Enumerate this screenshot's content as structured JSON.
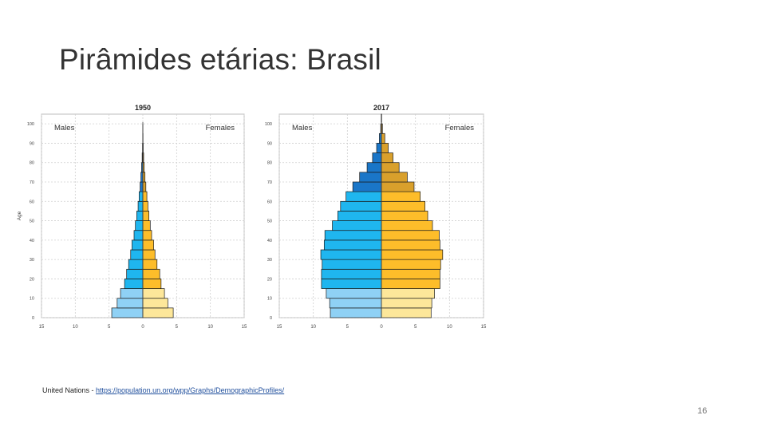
{
  "slide": {
    "title": "Pirâmides etárias: Brasil",
    "source_prefix": "United Nations - ",
    "source_link": "https://population.un.org/wpp/Graphs/DemographicProfiles/",
    "page_number": "16"
  },
  "colors": {
    "male": "#1fb6ef",
    "male_old": "#1a76c8",
    "male_young": "#8fd1f5",
    "female": "#fdbd2a",
    "female_old": "#d9a02c",
    "female_young": "#fde79a",
    "grid": "#cfcfcf",
    "axis": "#444444"
  },
  "chart_data": [
    {
      "type": "bar",
      "orientation": "horizontal-population-pyramid",
      "title": "1950",
      "ylabel": "Age",
      "xlim": [
        -15,
        15
      ],
      "xticks": [
        "15",
        "10",
        "5",
        "0",
        "5",
        "10",
        "15"
      ],
      "yticks": [
        "0",
        "10",
        "20",
        "30",
        "40",
        "50",
        "60",
        "70",
        "80",
        "90",
        "100"
      ],
      "age_groups": [
        "0-4",
        "5-9",
        "10-14",
        "15-19",
        "20-24",
        "25-29",
        "30-34",
        "35-39",
        "40-44",
        "45-49",
        "50-54",
        "55-59",
        "60-64",
        "65-69",
        "70-74",
        "75-79",
        "80-84",
        "85-89",
        "90-94",
        "95-99",
        "100+"
      ],
      "series": [
        {
          "name": "Males",
          "values": [
            4.6,
            3.8,
            3.3,
            2.7,
            2.4,
            2.1,
            1.8,
            1.6,
            1.3,
            1.1,
            0.9,
            0.7,
            0.55,
            0.4,
            0.28,
            0.18,
            0.1,
            0.05,
            0.02,
            0.01,
            0
          ]
        },
        {
          "name": "Females",
          "values": [
            4.5,
            3.7,
            3.2,
            2.7,
            2.5,
            2.1,
            1.8,
            1.6,
            1.3,
            1.1,
            0.9,
            0.75,
            0.6,
            0.45,
            0.32,
            0.2,
            0.12,
            0.06,
            0.03,
            0.01,
            0
          ]
        }
      ]
    },
    {
      "type": "bar",
      "orientation": "horizontal-population-pyramid",
      "title": "2017",
      "ylabel": "",
      "xlim": [
        -15,
        15
      ],
      "xticks": [
        "15",
        "10",
        "5",
        "0",
        "5",
        "10",
        "15"
      ],
      "yticks": [
        "0",
        "10",
        "20",
        "30",
        "40",
        "50",
        "60",
        "70",
        "80",
        "90",
        "100"
      ],
      "age_groups": [
        "0-4",
        "5-9",
        "10-14",
        "15-19",
        "20-24",
        "25-29",
        "30-34",
        "35-39",
        "40-44",
        "45-49",
        "50-54",
        "55-59",
        "60-64",
        "65-69",
        "70-74",
        "75-79",
        "80-84",
        "85-89",
        "90-94",
        "95-99",
        "100+"
      ],
      "series": [
        {
          "name": "Males",
          "values": [
            7.5,
            7.6,
            8.1,
            8.8,
            8.8,
            8.7,
            8.9,
            8.4,
            8.3,
            7.2,
            6.4,
            6.0,
            5.2,
            4.2,
            3.2,
            2.1,
            1.3,
            0.7,
            0.3,
            0.1,
            0.02
          ]
        },
        {
          "name": "Females",
          "values": [
            7.3,
            7.4,
            7.8,
            8.6,
            8.6,
            8.7,
            9.0,
            8.6,
            8.5,
            7.5,
            6.8,
            6.4,
            5.7,
            4.8,
            3.8,
            2.6,
            1.7,
            1.0,
            0.5,
            0.15,
            0.03
          ]
        }
      ]
    }
  ]
}
